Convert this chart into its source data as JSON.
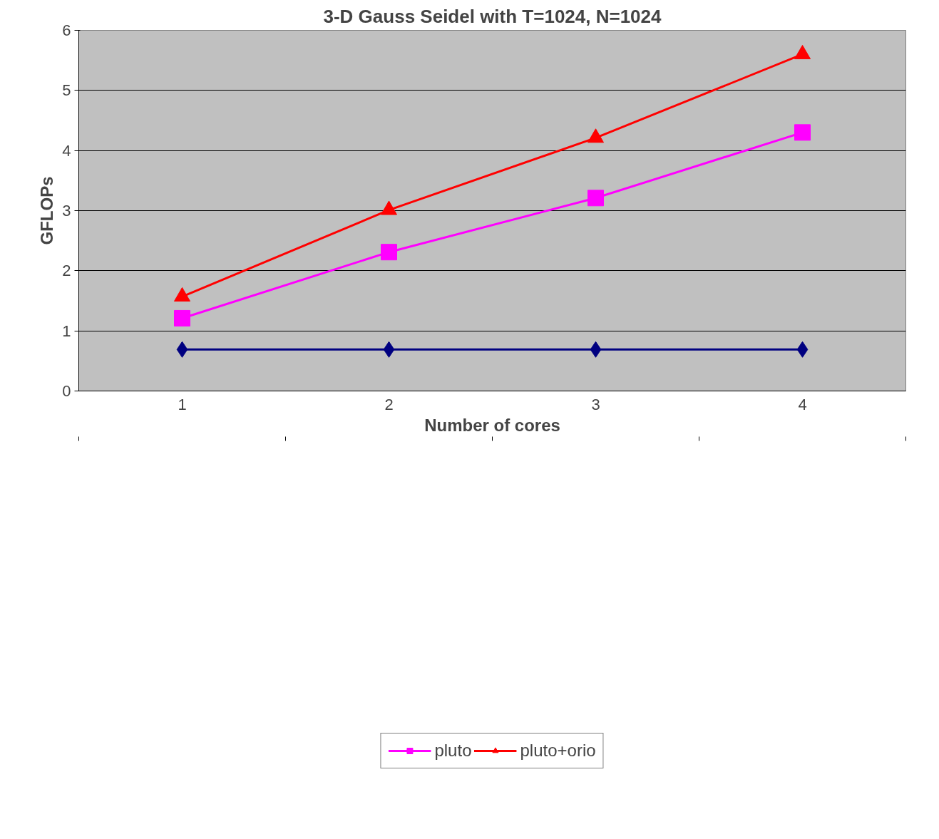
{
  "chart_data": {
    "type": "line",
    "title": "3-D Gauss Seidel with T=1024, N=1024",
    "xlabel": "Number of cores",
    "ylabel": "GFLOPs",
    "categories": [
      "1",
      "2",
      "3",
      "4"
    ],
    "series": [
      {
        "color": "#000080",
        "marker": "diamond",
        "values": [
          0.69,
          0.69,
          0.69,
          0.69
        ]
      },
      {
        "name": "pluto",
        "color": "#ff00ff",
        "marker": "square",
        "values": [
          1.21,
          2.31,
          3.21,
          4.3
        ]
      },
      {
        "name": "pluto+orio",
        "color": "#ff0000",
        "marker": "triangle",
        "values": [
          1.57,
          3.01,
          4.21,
          5.6
        ]
      }
    ],
    "ylim": [
      0,
      6
    ],
    "yticks": [
      0,
      1,
      2,
      3,
      4,
      5,
      6
    ],
    "grid": "y",
    "legend": "bottom"
  }
}
